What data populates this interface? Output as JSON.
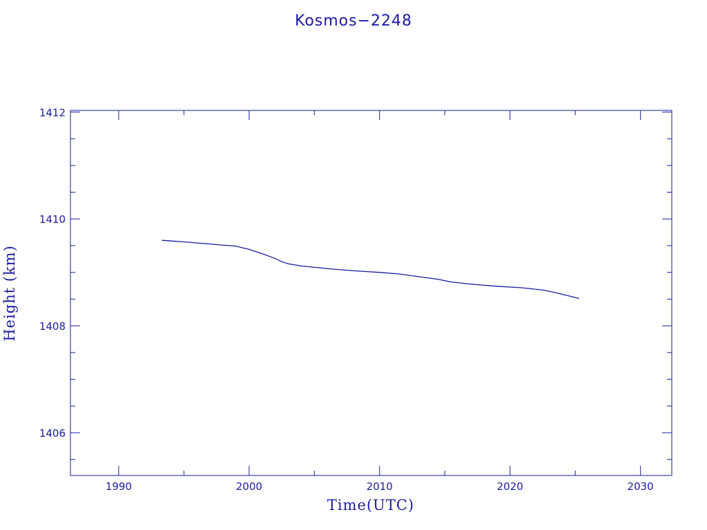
{
  "chart_data": {
    "type": "line",
    "title": "Kosmos−2248",
    "xlabel": "Time(UTC)",
    "ylabel": "Height (km)",
    "xlim": [
      1986.3,
      2032.4
    ],
    "ylim": [
      1405.2,
      1412.03
    ],
    "x_ticks": [
      1990,
      2000,
      2010,
      2020,
      2030
    ],
    "y_ticks": [
      1406,
      1408,
      1410,
      1412
    ],
    "grid": false,
    "colors": {
      "line": "#1a1aa6"
    },
    "series": [
      {
        "x": [
          1993.3,
          1995.0,
          1997.0,
          1999.0,
          2000.0,
          2001.0,
          2002.0,
          2002.5,
          2003.0,
          2004.0,
          2006.0,
          2008.0,
          2010.0,
          2011.5,
          2013.0,
          2014.5,
          2015.5,
          2017.0,
          2019.0,
          2021.0,
          2022.5,
          2023.5,
          2024.5,
          2025.3
        ],
        "y": [
          1409.6,
          1409.57,
          1409.53,
          1409.49,
          1409.43,
          1409.35,
          1409.26,
          1409.2,
          1409.16,
          1409.12,
          1409.07,
          1409.03,
          1409.0,
          1408.97,
          1408.92,
          1408.87,
          1408.82,
          1408.78,
          1408.74,
          1408.71,
          1408.67,
          1408.62,
          1408.56,
          1408.51
        ]
      }
    ]
  }
}
